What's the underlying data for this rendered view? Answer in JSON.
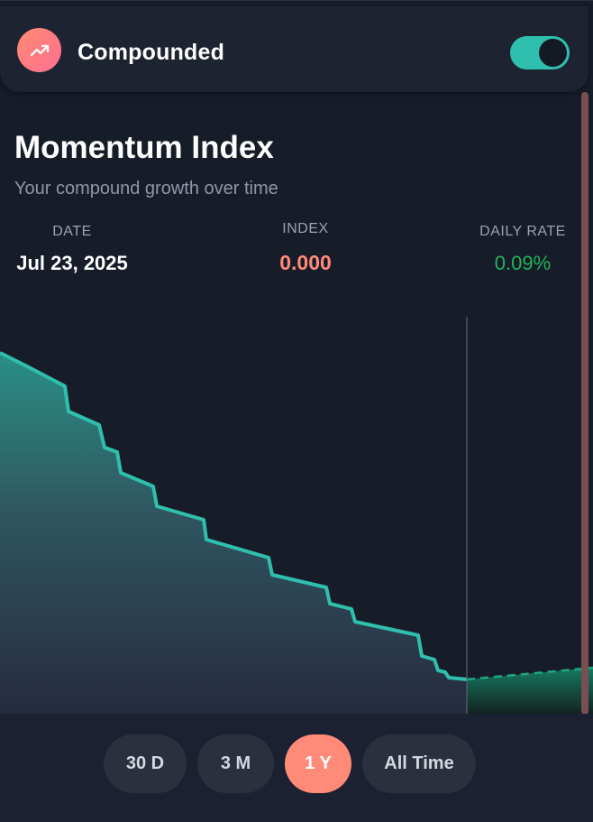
{
  "header": {
    "title": "Compounded",
    "icon": "trending-up-icon",
    "toggle_on": true
  },
  "main": {
    "title": "Momentum Index",
    "subtitle": "Your compound growth over time"
  },
  "stats": {
    "date_label": "DATE",
    "date_value": "Jul 23, 2025",
    "index_label": "INDEX",
    "index_value": "0.000",
    "rate_label": "DAILY RATE",
    "rate_value": "0.09%"
  },
  "colors": {
    "accent": "#2fbfae",
    "index": "#ff8a78",
    "rate": "#22b45a",
    "pill_active": "#ff8a78"
  },
  "range_buttons": [
    {
      "label": "30 D",
      "active": false
    },
    {
      "label": "3 M",
      "active": false
    },
    {
      "label": "1 Y",
      "active": true
    },
    {
      "label": "All Time",
      "active": false
    }
  ]
}
